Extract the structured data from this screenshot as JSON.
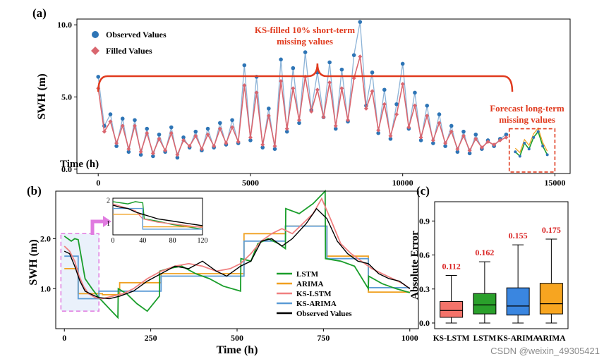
{
  "watermark": "CSDN @weixin_49305421",
  "colors": {
    "observed_a": "#2e75b6",
    "filled": "#d9666f",
    "annotation_red": "#e03a1e",
    "lstm": "#1a9e2b",
    "arima": "#f0a020",
    "ks_lstm": "#f08080",
    "ks_arima": "#5b9bd5",
    "observed_b": "#000000",
    "inset_box_fill": "#eaf1fb",
    "inset_box_stroke": "#e07be0",
    "box_ks_lstm": "#f4736a",
    "box_lstm": "#2aa02b",
    "box_ks_arima": "#3a86e0",
    "box_arima": "#f7a520"
  },
  "chart_data": [
    {
      "id": "a",
      "panel_label": "(a)",
      "type": "scatter",
      "xlabel": "Time (h)",
      "ylabel": "SWH (m)",
      "xlim": [
        -700,
        15500
      ],
      "ylim": [
        -0.3,
        10.4
      ],
      "xticks": [
        0,
        5000,
        10000,
        15000
      ],
      "xtick_labels": [
        "0",
        "5000",
        "10000",
        "15000"
      ],
      "yticks": [
        0,
        5,
        10
      ],
      "ytick_labels": [
        "0.0",
        "5.0",
        "10.0"
      ],
      "legend": {
        "position": "top-left",
        "entries": [
          "Observed Values",
          "Filled Values"
        ]
      },
      "annotations": {
        "short_term": [
          "KS-filled 10% short-term",
          "missing values"
        ],
        "long_term": [
          "Forecast long-term",
          "missing values"
        ]
      },
      "series": [
        {
          "name": "Observed Values",
          "marker": "circle",
          "x": [
            0,
            200,
            400,
            600,
            800,
            1000,
            1200,
            1400,
            1600,
            1800,
            2000,
            2200,
            2400,
            2600,
            2800,
            3000,
            3200,
            3400,
            3600,
            3800,
            4000,
            4200,
            4400,
            4600,
            4800,
            5000,
            5200,
            5400,
            5600,
            5800,
            6000,
            6200,
            6400,
            6600,
            6800,
            7000,
            7200,
            7400,
            7600,
            7800,
            8000,
            8200,
            8400,
            8600,
            8800,
            9000,
            9200,
            9400,
            9600,
            9800,
            10000,
            10200,
            10400,
            10600,
            10800,
            11000,
            11200,
            11400,
            11600,
            11800,
            12000,
            12200,
            12400,
            12600,
            12800,
            13000,
            13200,
            13400
          ],
          "y": [
            6.4,
            3.0,
            3.8,
            1.6,
            3.5,
            1.2,
            3.4,
            1.0,
            2.8,
            0.9,
            2.4,
            1.2,
            2.9,
            0.8,
            2.2,
            1.5,
            2.6,
            1.3,
            2.8,
            1.5,
            3.2,
            1.7,
            3.4,
            1.8,
            7.2,
            2.0,
            6.4,
            1.5,
            4.2,
            1.4,
            7.6,
            2.6,
            7.0,
            3.2,
            8.1,
            4.1,
            6.7,
            3.6,
            7.4,
            2.8,
            6.9,
            3.3,
            7.9,
            10.2,
            4.4,
            6.7,
            2.5,
            5.5,
            2.1,
            4.5,
            7.3,
            2.8,
            5.3,
            2.0,
            4.4,
            1.8,
            3.8,
            1.6,
            3.0,
            1.2,
            2.6,
            1.1,
            2.4,
            1.4,
            2.0,
            1.6,
            2.1,
            2.4
          ]
        },
        {
          "name": "Filled Values",
          "marker": "diamond",
          "x": [
            0,
            200,
            400,
            600,
            800,
            1000,
            1200,
            1400,
            1600,
            1800,
            2000,
            2200,
            2400,
            2600,
            2800,
            3000,
            3200,
            3400,
            3600,
            3800,
            4000,
            4200,
            4400,
            4600,
            4800,
            5000,
            5200,
            5400,
            5600,
            5800,
            6000,
            6200,
            6400,
            6600,
            6800,
            7000,
            7200,
            7400,
            7600,
            7800,
            8000,
            8200,
            8400,
            8600,
            8800,
            9000,
            9200,
            9400,
            9600,
            9800,
            10000,
            10200,
            10400,
            10600,
            10800,
            11000,
            11200,
            11400,
            11600,
            11800,
            12000,
            12200,
            12400,
            12600,
            12800,
            13000,
            13200,
            13400
          ],
          "y": [
            5.6,
            2.6,
            3.3,
            1.8,
            3.0,
            1.4,
            3.0,
            1.2,
            2.5,
            1.1,
            2.1,
            1.3,
            2.5,
            1.0,
            2.0,
            1.6,
            2.3,
            1.4,
            2.4,
            1.6,
            2.8,
            1.8,
            2.9,
            1.9,
            5.8,
            2.2,
            5.3,
            1.7,
            3.7,
            1.6,
            6.1,
            2.8,
            5.6,
            3.4,
            6.4,
            4.0,
            5.5,
            3.6,
            6.0,
            3.0,
            5.6,
            3.4,
            6.3,
            7.8,
            4.2,
            5.4,
            2.7,
            4.5,
            2.3,
            3.8,
            5.9,
            2.9,
            4.4,
            2.2,
            3.7,
            2.0,
            3.2,
            1.8,
            2.6,
            1.4,
            2.3,
            1.3,
            2.1,
            1.5,
            1.9,
            1.7,
            2.0,
            2.2
          ]
        },
        {
          "name": "Forecast (long-term)",
          "x": [
            13700,
            13850,
            14000,
            14150,
            14300,
            14450,
            14600,
            14750
          ],
          "y": [
            1.2,
            0.9,
            1.8,
            1.4,
            2.2,
            2.6,
            1.6,
            1.0
          ]
        }
      ]
    },
    {
      "id": "b",
      "panel_label": "(b)",
      "type": "line",
      "xlabel": "Time (h)",
      "ylabel": "SWH (m)",
      "xlim": [
        -25,
        1025
      ],
      "ylim": [
        0.2,
        2.95
      ],
      "xticks": [
        0,
        250,
        500,
        750,
        1000
      ],
      "xtick_labels": [
        "0",
        "250",
        "500",
        "750",
        "1000"
      ],
      "yticks": [
        1.0,
        2.0
      ],
      "ytick_labels": [
        "1.0",
        "2.0"
      ],
      "legend": {
        "position": "center-right"
      },
      "series": [
        {
          "name": "LSTM",
          "x": [
            0,
            10,
            20,
            30,
            40,
            60,
            80,
            100,
            130,
            155,
            156,
            180,
            210,
            240,
            275,
            276,
            300,
            340,
            380,
            420,
            460,
            510,
            511,
            540,
            560,
            590,
            620,
            640,
            641,
            680,
            720,
            755,
            756,
            800,
            840,
            880,
            881,
            920,
            960,
            1000
          ],
          "y": [
            2.05,
            2.0,
            1.95,
            2.0,
            1.98,
            1.2,
            1.0,
            0.82,
            0.6,
            0.42,
            1.0,
            0.9,
            0.7,
            0.55,
            0.85,
            1.35,
            1.4,
            1.45,
            1.3,
            1.2,
            1.05,
            0.95,
            1.6,
            1.55,
            1.9,
            2.0,
            1.9,
            1.8,
            2.6,
            2.5,
            2.7,
            2.95,
            1.6,
            1.55,
            1.45,
            1.0,
            1.25,
            1.1,
            1.0,
            0.92
          ]
        },
        {
          "name": "ARIMA",
          "x": [
            0,
            40,
            40,
            110,
            110,
            160,
            160,
            280,
            280,
            520,
            520,
            640,
            640,
            760,
            760,
            880,
            880,
            1000
          ],
          "y": [
            1.4,
            1.4,
            0.9,
            0.9,
            0.88,
            0.88,
            1.12,
            1.12,
            1.3,
            1.3,
            2.1,
            2.1,
            2.25,
            2.25,
            1.65,
            1.65,
            0.93,
            0.93
          ]
        },
        {
          "name": "KS-LSTM",
          "x": [
            0,
            15,
            30,
            40,
            55,
            70,
            90,
            110,
            140,
            170,
            200,
            240,
            280,
            320,
            360,
            400,
            440,
            480,
            510,
            540,
            570,
            600,
            630,
            660,
            690,
            720,
            745,
            770,
            800,
            830,
            860,
            890,
            920,
            950,
            980,
            1000
          ],
          "y": [
            1.85,
            1.75,
            1.55,
            1.3,
            1.05,
            0.9,
            0.82,
            0.8,
            0.85,
            0.9,
            1.0,
            1.2,
            1.35,
            1.45,
            1.5,
            1.45,
            1.35,
            1.4,
            1.5,
            1.7,
            1.95,
            2.1,
            2.2,
            2.1,
            2.3,
            2.5,
            2.8,
            2.4,
            1.9,
            1.7,
            1.55,
            1.4,
            1.3,
            1.2,
            1.1,
            1.0
          ]
        },
        {
          "name": "KS-ARIMA",
          "x": [
            0,
            40,
            40,
            100,
            100,
            280,
            280,
            520,
            520,
            640,
            640,
            760,
            760,
            880,
            880,
            1000
          ],
          "y": [
            1.65,
            1.65,
            0.8,
            0.8,
            0.95,
            0.95,
            1.25,
            1.25,
            1.95,
            1.95,
            2.25,
            2.25,
            1.6,
            1.6,
            1.02,
            1.02
          ]
        },
        {
          "name": "Observed Values",
          "x": [
            0,
            15,
            30,
            45,
            60,
            80,
            100,
            130,
            160,
            200,
            240,
            280,
            320,
            360,
            400,
            440,
            470,
            510,
            540,
            570,
            600,
            630,
            660,
            700,
            730,
            760,
            790,
            820,
            850,
            880,
            910,
            940,
            970,
            1000
          ],
          "y": [
            1.75,
            1.7,
            1.45,
            1.15,
            0.95,
            0.88,
            0.82,
            0.8,
            0.85,
            0.95,
            1.15,
            1.3,
            1.45,
            1.4,
            1.55,
            1.35,
            1.25,
            1.45,
            1.55,
            1.95,
            2.0,
            1.85,
            2.0,
            2.3,
            2.6,
            2.4,
            1.95,
            1.7,
            1.55,
            1.5,
            1.3,
            1.2,
            1.15,
            1.0
          ]
        }
      ],
      "inset": {
        "xlim": [
          0,
          120
        ],
        "ylim": [
          0.5,
          2.1
        ],
        "xticks": [
          0,
          40,
          80,
          120
        ],
        "xtick_labels": [
          "0",
          "40",
          "80",
          "120"
        ],
        "yticks": [
          1,
          2
        ],
        "ytick_labels": [
          "1",
          "2"
        ],
        "series": [
          {
            "name": "LSTM",
            "x": [
              0,
              10,
              20,
              30,
              40,
              42,
              60,
              80,
              100,
              120
            ],
            "y": [
              1.95,
              1.9,
              1.85,
              1.95,
              1.9,
              1.2,
              1.1,
              0.95,
              0.85,
              0.75
            ]
          },
          {
            "name": "ARIMA",
            "x": [
              0,
              40,
              40,
              120
            ],
            "y": [
              1.4,
              1.4,
              0.85,
              0.85
            ]
          },
          {
            "name": "KS-LSTM",
            "x": [
              0,
              15,
              30,
              40,
              60,
              80,
              100,
              120
            ],
            "y": [
              1.85,
              1.7,
              1.55,
              1.2,
              1.05,
              0.98,
              0.9,
              0.82
            ]
          },
          {
            "name": "KS-ARIMA",
            "x": [
              0,
              40,
              40,
              120
            ],
            "y": [
              1.65,
              1.65,
              0.75,
              0.75
            ]
          },
          {
            "name": "Observed Values",
            "x": [
              0,
              10,
              20,
              30,
              40,
              50,
              60,
              80,
              100,
              120
            ],
            "y": [
              1.8,
              1.7,
              1.65,
              1.5,
              1.4,
              1.3,
              1.2,
              1.1,
              1.0,
              0.9
            ]
          }
        ]
      }
    },
    {
      "id": "c",
      "panel_label": "(c)",
      "type": "box",
      "ylabel": "Absolute Error",
      "ylim": [
        -0.05,
        1.07
      ],
      "yticks": [
        0.0,
        0.3,
        0.6,
        0.9
      ],
      "ytick_labels": [
        "0.0",
        "0.3",
        "0.6",
        "0.9"
      ],
      "categories": [
        "KS-LSTM",
        "LSTM",
        "KS-ARIMA",
        "ARIMA"
      ],
      "boxes": [
        {
          "name": "KS-LSTM",
          "min": 0.0,
          "q1": 0.05,
          "median": 0.11,
          "q3": 0.19,
          "max": 0.42,
          "mean_label": "0.112"
        },
        {
          "name": "LSTM",
          "min": 0.0,
          "q1": 0.08,
          "median": 0.16,
          "q3": 0.26,
          "max": 0.54,
          "mean_label": "0.162"
        },
        {
          "name": "KS-ARIMA",
          "min": 0.0,
          "q1": 0.07,
          "median": 0.15,
          "q3": 0.31,
          "max": 0.69,
          "mean_label": "0.155"
        },
        {
          "name": "ARIMA",
          "min": 0.0,
          "q1": 0.08,
          "median": 0.17,
          "q3": 0.35,
          "max": 0.74,
          "mean_label": "0.175"
        }
      ]
    }
  ]
}
